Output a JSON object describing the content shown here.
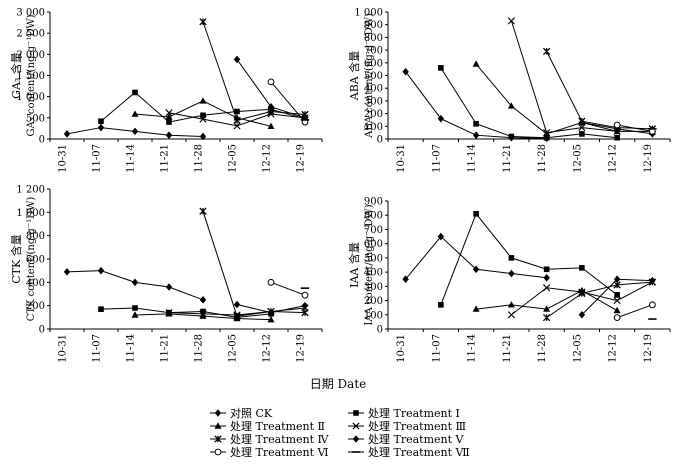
{
  "chart_data": [
    {
      "type": "line",
      "id": "ga3",
      "ylabel_cn": "GA₃ 含量",
      "ylabel": "GA₃ content/(ng·g⁻¹DW)",
      "ylim": [
        0,
        3000
      ],
      "yticks": [
        "0",
        "500",
        "1 000",
        "1 500",
        "2 000",
        "2 500",
        "3 000"
      ],
      "categories": [
        "10-31",
        "11-07",
        "11-14",
        "11-21",
        "11-28",
        "12-05",
        "12-12",
        "12-19"
      ],
      "series": [
        {
          "name": "CK",
          "marker": "diamond",
          "x": [
            0,
            1,
            2,
            3,
            4
          ],
          "values": [
            120,
            270,
            180,
            90,
            60
          ]
        },
        {
          "name": "I",
          "marker": "square",
          "x": [
            1,
            2,
            3,
            4,
            5,
            6,
            7
          ],
          "values": [
            420,
            1100,
            400,
            560,
            650,
            700,
            480
          ]
        },
        {
          "name": "II",
          "marker": "triangle",
          "x": [
            2,
            3,
            4,
            5,
            6
          ],
          "values": [
            590,
            520,
            900,
            500,
            300
          ]
        },
        {
          "name": "III",
          "marker": "x",
          "x": [
            3,
            4,
            5,
            6,
            7
          ],
          "values": [
            620,
            470,
            310,
            590,
            500
          ]
        },
        {
          "name": "IV",
          "marker": "asterisk",
          "x": [
            4,
            5,
            6,
            7
          ],
          "values": [
            2770,
            440,
            650,
            580
          ]
        },
        {
          "name": "V",
          "marker": "diamond",
          "x": [
            5,
            6,
            7
          ],
          "values": [
            1880,
            760,
            500
          ]
        },
        {
          "name": "VI",
          "marker": "circle",
          "x": [
            6,
            7
          ],
          "values": [
            1350,
            400
          ]
        },
        {
          "name": "VII",
          "marker": "dash",
          "x": [
            7
          ],
          "values": [
            450
          ]
        }
      ]
    },
    {
      "type": "line",
      "id": "aba",
      "ylabel_cn": "ABA 含量",
      "ylabel": "ABA content/(ng·g⁻¹DW)",
      "ylim": [
        0,
        1000
      ],
      "yticks": [
        "0",
        "100",
        "200",
        "300",
        "400",
        "500",
        "600",
        "700",
        "800",
        "900",
        "1 000"
      ],
      "categories": [
        "10-31",
        "11-07",
        "11-14",
        "11-21",
        "11-28",
        "12-05",
        "12-12",
        "12-19"
      ],
      "series": [
        {
          "name": "CK",
          "marker": "diamond",
          "x": [
            0,
            1,
            2,
            3,
            4
          ],
          "values": [
            530,
            160,
            30,
            10,
            5
          ]
        },
        {
          "name": "I",
          "marker": "square",
          "x": [
            1,
            2,
            3,
            4,
            5,
            6
          ],
          "values": [
            560,
            120,
            20,
            10,
            40,
            10
          ]
        },
        {
          "name": "II",
          "marker": "triangle",
          "x": [
            2,
            3,
            4,
            5,
            6
          ],
          "values": [
            590,
            260,
            40,
            130,
            60
          ]
        },
        {
          "name": "III",
          "marker": "x",
          "x": [
            3,
            4,
            5,
            6,
            7
          ],
          "values": [
            930,
            50,
            90,
            60,
            60
          ]
        },
        {
          "name": "IV",
          "marker": "asterisk",
          "x": [
            4,
            5,
            6,
            7
          ],
          "values": [
            690,
            140,
            90,
            80
          ]
        },
        {
          "name": "V",
          "marker": "diamond",
          "x": [
            5,
            6,
            7
          ],
          "values": [
            130,
            80,
            40
          ]
        },
        {
          "name": "VI",
          "marker": "circle",
          "x": [
            6,
            7
          ],
          "values": [
            110,
            60
          ]
        },
        {
          "name": "VII",
          "marker": "dash",
          "x": [
            7
          ],
          "values": [
            80
          ]
        }
      ]
    },
    {
      "type": "line",
      "id": "ctk",
      "ylabel_cn": "CTK 含量",
      "ylabel": "CTK content/(ng·g⁻¹DW)",
      "ylim": [
        0,
        1200
      ],
      "yticks": [
        "0",
        "200",
        "400",
        "600",
        "800",
        "1 000",
        "1 200"
      ],
      "categories": [
        "10-31",
        "11-07",
        "11-14",
        "11-21",
        "11-28",
        "12-05",
        "12-12",
        "12-19"
      ],
      "series": [
        {
          "name": "CK",
          "marker": "diamond",
          "x": [
            0,
            1,
            2,
            3,
            4
          ],
          "values": [
            490,
            500,
            400,
            360,
            250
          ]
        },
        {
          "name": "I",
          "marker": "square",
          "x": [
            1,
            2,
            3,
            4,
            5,
            6
          ],
          "values": [
            170,
            180,
            140,
            150,
            100,
            130
          ]
        },
        {
          "name": "II",
          "marker": "triangle",
          "x": [
            2,
            3,
            4,
            5,
            6
          ],
          "values": [
            120,
            130,
            110,
            90,
            80
          ]
        },
        {
          "name": "III",
          "marker": "x",
          "x": [
            3,
            4,
            5,
            6,
            7
          ],
          "values": [
            140,
            130,
            120,
            150,
            180
          ]
        },
        {
          "name": "IV",
          "marker": "asterisk",
          "x": [
            4,
            5,
            6,
            7
          ],
          "values": [
            1010,
            110,
            150,
            140
          ]
        },
        {
          "name": "V",
          "marker": "diamond",
          "x": [
            5,
            6,
            7
          ],
          "values": [
            210,
            140,
            200
          ]
        },
        {
          "name": "VI",
          "marker": "circle",
          "x": [
            6,
            7
          ],
          "values": [
            400,
            290
          ]
        },
        {
          "name": "VII",
          "marker": "dash",
          "x": [
            7
          ],
          "values": [
            350
          ]
        }
      ]
    },
    {
      "type": "line",
      "id": "iaa",
      "ylabel_cn": "IAA 含量",
      "ylabel": "IAA content/(ng·g⁻¹DW)",
      "ylim": [
        0,
        900
      ],
      "yticks": [
        "0",
        "100",
        "200",
        "300",
        "400",
        "500",
        "600",
        "700",
        "800",
        "900"
      ],
      "categories": [
        "10-31",
        "11-07",
        "11-14",
        "11-21",
        "11-28",
        "12-05",
        "12-12",
        "12-19"
      ],
      "series": [
        {
          "name": "CK",
          "marker": "diamond",
          "x": [
            0,
            1,
            2,
            3,
            4
          ],
          "values": [
            350,
            650,
            420,
            390,
            360
          ]
        },
        {
          "name": "I",
          "marker": "square",
          "x": [
            1,
            2,
            3,
            4,
            5,
            6
          ],
          "values": [
            170,
            810,
            500,
            420,
            430,
            240
          ]
        },
        {
          "name": "II",
          "marker": "triangle",
          "x": [
            2,
            3,
            4,
            5,
            6
          ],
          "values": [
            140,
            170,
            140,
            270,
            130
          ]
        },
        {
          "name": "III",
          "marker": "x",
          "x": [
            3,
            4,
            5,
            6,
            7
          ],
          "values": [
            100,
            290,
            260,
            200,
            330
          ]
        },
        {
          "name": "IV",
          "marker": "asterisk",
          "x": [
            4,
            5,
            6,
            7
          ],
          "values": [
            80,
            250,
            310,
            330
          ]
        },
        {
          "name": "V",
          "marker": "diamond",
          "x": [
            5,
            6,
            7
          ],
          "values": [
            100,
            350,
            340
          ]
        },
        {
          "name": "VI",
          "marker": "circle",
          "x": [
            6,
            7
          ],
          "values": [
            80,
            170
          ]
        },
        {
          "name": "VII",
          "marker": "dash",
          "x": [
            7
          ],
          "values": [
            70
          ]
        }
      ]
    }
  ],
  "xlabel": "日期 Date",
  "legend": [
    {
      "label": "对照 CK",
      "marker": "diamond"
    },
    {
      "label": "处理  Treatment Ⅰ",
      "marker": "square"
    },
    {
      "label": "处理  Treatment Ⅱ",
      "marker": "triangle"
    },
    {
      "label": "处理  Treatment Ⅲ",
      "marker": "x"
    },
    {
      "label": "处理  Treatment Ⅳ",
      "marker": "asterisk"
    },
    {
      "label": "处理  Treatment Ⅴ",
      "marker": "diamond"
    },
    {
      "label": "处理  Treatment Ⅵ",
      "marker": "circle"
    },
    {
      "label": "处理  Treatment Ⅶ",
      "marker": "dash"
    }
  ]
}
